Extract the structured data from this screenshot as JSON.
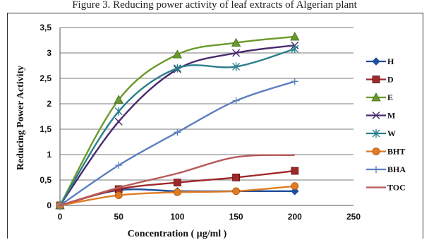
{
  "caption": "Figure 3. Reducing power activity of leaf extracts of Algerian plant",
  "chart_data": {
    "type": "line",
    "title": "",
    "xlabel": "Concentration ( µg/ml )",
    "ylabel": "Reducing Power Activity",
    "xlim": [
      0,
      250
    ],
    "ylim": [
      0,
      3.5
    ],
    "xticks": [
      0,
      50,
      100,
      150,
      200,
      250
    ],
    "yticks": [
      0,
      0.5,
      1,
      1.5,
      2,
      2.5,
      3,
      3.5
    ],
    "xtick_labels": [
      "0",
      "50",
      "100",
      "150",
      "200",
      "250"
    ],
    "ytick_labels": [
      "0",
      "0,5",
      "1",
      "1,5",
      "2",
      "2,5",
      "3",
      "3,5"
    ],
    "grid": "horizontal",
    "legend_position": "right",
    "x": [
      0,
      50,
      100,
      150,
      200
    ],
    "series": [
      {
        "name": "H",
        "values": [
          0,
          0.3,
          0.28,
          0.28,
          0.28
        ],
        "color": "#1f4e9a",
        "marker": "diamond"
      },
      {
        "name": "D",
        "values": [
          0,
          0.32,
          0.45,
          0.55,
          0.68
        ],
        "color": "#a0282a",
        "marker": "square"
      },
      {
        "name": "E",
        "values": [
          0,
          2.08,
          2.97,
          3.2,
          3.32
        ],
        "color": "#6a9a2c",
        "marker": "triangle"
      },
      {
        "name": "M",
        "values": [
          0,
          1.65,
          2.68,
          3.0,
          3.15
        ],
        "color": "#4a2a6e",
        "marker": "x"
      },
      {
        "name": "W",
        "values": [
          0,
          1.85,
          2.7,
          2.73,
          3.08
        ],
        "color": "#2a7f8c",
        "marker": "star"
      },
      {
        "name": "BHT",
        "values": [
          0,
          0.2,
          0.26,
          0.28,
          0.38
        ],
        "color": "#e07b22",
        "marker": "circle"
      },
      {
        "name": "BHA",
        "values": [
          0,
          0.79,
          1.44,
          2.06,
          2.44
        ],
        "color": "#5b7fbf",
        "marker": "plus"
      },
      {
        "name": "TOC",
        "values": [
          0,
          0.35,
          0.63,
          0.95,
          0.99
        ],
        "color": "#b85a5a",
        "marker": "none"
      }
    ]
  }
}
